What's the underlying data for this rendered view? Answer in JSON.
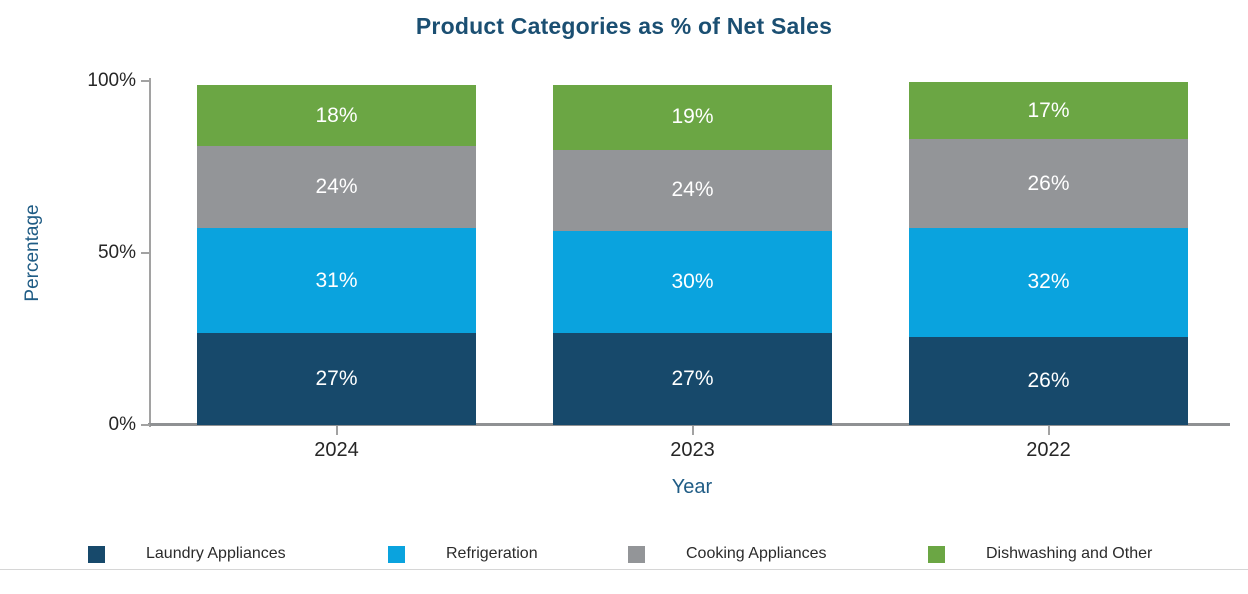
{
  "chart_data": {
    "type": "bar",
    "stacked": true,
    "title": "Product Categories as % of Net Sales",
    "xlabel": "Year",
    "ylabel": "Percentage",
    "categories": [
      "2024",
      "2023",
      "2022"
    ],
    "series": [
      {
        "name": "Laundry Appliances",
        "color": "#17496B",
        "values": [
          27,
          27,
          26
        ]
      },
      {
        "name": "Refrigeration",
        "color": "#0AA3DE",
        "values": [
          31,
          30,
          32
        ]
      },
      {
        "name": "Cooking Appliances",
        "color": "#939598",
        "values": [
          24,
          24,
          26
        ]
      },
      {
        "name": "Dishwashing and Other",
        "color": "#6BA644",
        "values": [
          18,
          19,
          17
        ]
      }
    ],
    "value_suffix": "%",
    "bar_labels": [
      [
        "27%",
        "31%",
        "24%",
        "18%"
      ],
      [
        "27%",
        "30%",
        "24%",
        "19%"
      ],
      [
        "26%",
        "32%",
        "26%",
        "17%"
      ]
    ],
    "yticks": [
      {
        "label": "0%",
        "value": 0
      },
      {
        "label": "50%",
        "value": 50
      },
      {
        "label": "100%",
        "value": 100
      }
    ],
    "ylim": [
      0,
      100
    ],
    "grid": false,
    "legend_position": "bottom",
    "colors": {
      "title": "#1B4F72",
      "axis_titles": "#1F5C85",
      "tick_labels": "#262626",
      "axis_line": "#A2A2A2",
      "bar_value_labels": "#FFFFFF"
    }
  }
}
